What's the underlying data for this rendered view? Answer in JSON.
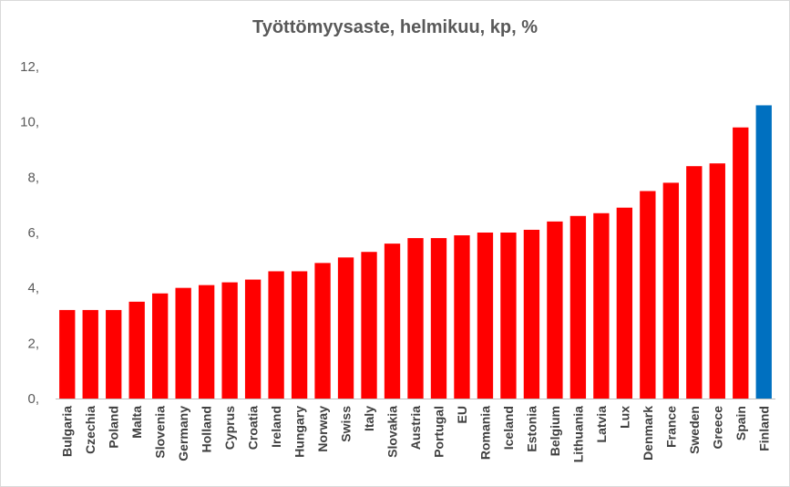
{
  "chart_data": {
    "type": "bar",
    "title": "Työttömyysaste, helmikuu, kp, %",
    "xlabel": "",
    "ylabel": "",
    "ylim": [
      0,
      12
    ],
    "yticks": [
      0,
      2,
      4,
      6,
      8,
      10,
      12
    ],
    "ytick_labels": [
      "0,",
      "2,",
      "4,",
      "6,",
      "8,",
      "10,",
      "12,"
    ],
    "grid": false,
    "legend": "none",
    "colors": {
      "bar": "#ff0000",
      "highlight": "#0070c0",
      "axis": "#bfbfbf"
    },
    "highlight_category": "Finland",
    "categories": [
      "Bulgaria",
      "Czechia",
      "Poland",
      "Malta",
      "Slovenia",
      "Germany",
      "Holland",
      "Cyprus",
      "Croatia",
      "Ireland",
      "Hungary",
      "Norway",
      "Swiss",
      "Italy",
      "Slovakia",
      "Austria",
      "Portugal",
      "EU",
      "Romania",
      "Iceland",
      "Estonia",
      "Belgium",
      "Lithuania",
      "Latvia",
      "Lux",
      "Denmark",
      "France",
      "Sweden",
      "Greece",
      "Spain",
      "Finland"
    ],
    "values": [
      3.2,
      3.2,
      3.2,
      3.5,
      3.8,
      4.0,
      4.1,
      4.2,
      4.3,
      4.6,
      4.6,
      4.9,
      5.1,
      5.3,
      5.6,
      5.8,
      5.8,
      5.9,
      6.0,
      6.0,
      6.1,
      6.4,
      6.6,
      6.7,
      6.9,
      7.5,
      7.8,
      8.4,
      8.5,
      9.8,
      10.6
    ]
  }
}
